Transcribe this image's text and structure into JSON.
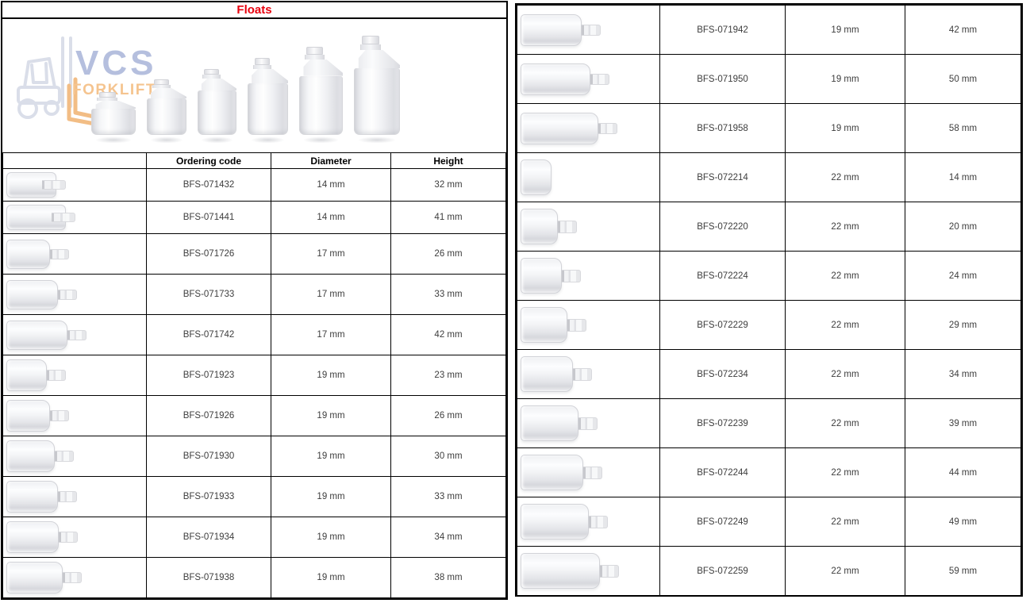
{
  "title": "Floats",
  "colors": {
    "title_red": "#e8000d",
    "logo_blue": "#b5bfde",
    "logo_orange": "#f5c48f"
  },
  "logo": {
    "brand": "VCS",
    "tagline": "FORKLIFTS"
  },
  "headers": {
    "ordering_code": "Ordering code",
    "diameter": "Diameter",
    "height": "Height"
  },
  "left_table": {
    "rows": [
      {
        "code": "BFS-071432",
        "diameter": "14 mm",
        "height": "32 mm",
        "style": "tube"
      },
      {
        "code": "BFS-071441",
        "diameter": "14 mm",
        "height": "41 mm",
        "style": "tube"
      },
      {
        "code": "BFS-071726",
        "diameter": "17 mm",
        "height": "26 mm",
        "style": "float"
      },
      {
        "code": "BFS-071733",
        "diameter": "17 mm",
        "height": "33 mm",
        "style": "float"
      },
      {
        "code": "BFS-071742",
        "diameter": "17 mm",
        "height": "42 mm",
        "style": "float"
      },
      {
        "code": "BFS-071923",
        "diameter": "19 mm",
        "height": "23 mm",
        "style": "float"
      },
      {
        "code": "BFS-071926",
        "diameter": "19 mm",
        "height": "26 mm",
        "style": "float"
      },
      {
        "code": "BFS-071930",
        "diameter": "19 mm",
        "height": "30 mm",
        "style": "float"
      },
      {
        "code": "BFS-071933",
        "diameter": "19 mm",
        "height": "33 mm",
        "style": "float"
      },
      {
        "code": "BFS-071934",
        "diameter": "19 mm",
        "height": "34 mm",
        "style": "float"
      },
      {
        "code": "BFS-071938",
        "diameter": "19 mm",
        "height": "38 mm",
        "style": "float"
      }
    ]
  },
  "right_table": {
    "rows": [
      {
        "code": "BFS-071942",
        "diameter": "19 mm",
        "height": "42 mm",
        "style": "float"
      },
      {
        "code": "BFS-071950",
        "diameter": "19 mm",
        "height": "50 mm",
        "style": "float"
      },
      {
        "code": "BFS-071958",
        "diameter": "19 mm",
        "height": "58 mm",
        "style": "float"
      },
      {
        "code": "BFS-072214",
        "diameter": "22 mm",
        "height": "14 mm",
        "style": "disc"
      },
      {
        "code": "BFS-072220",
        "diameter": "22 mm",
        "height": "20 mm",
        "style": "float"
      },
      {
        "code": "BFS-072224",
        "diameter": "22 mm",
        "height": "24 mm",
        "style": "float"
      },
      {
        "code": "BFS-072229",
        "diameter": "22 mm",
        "height": "29 mm",
        "style": "float"
      },
      {
        "code": "BFS-072234",
        "diameter": "22 mm",
        "height": "34 mm",
        "style": "float"
      },
      {
        "code": "BFS-072239",
        "diameter": "22 mm",
        "height": "39 mm",
        "style": "float"
      },
      {
        "code": "BFS-072244",
        "diameter": "22 mm",
        "height": "44 mm",
        "style": "float"
      },
      {
        "code": "BFS-072249",
        "diameter": "22 mm",
        "height": "49 mm",
        "style": "float"
      },
      {
        "code": "BFS-072259",
        "diameter": "22 mm",
        "height": "59 mm",
        "style": "float"
      }
    ]
  }
}
